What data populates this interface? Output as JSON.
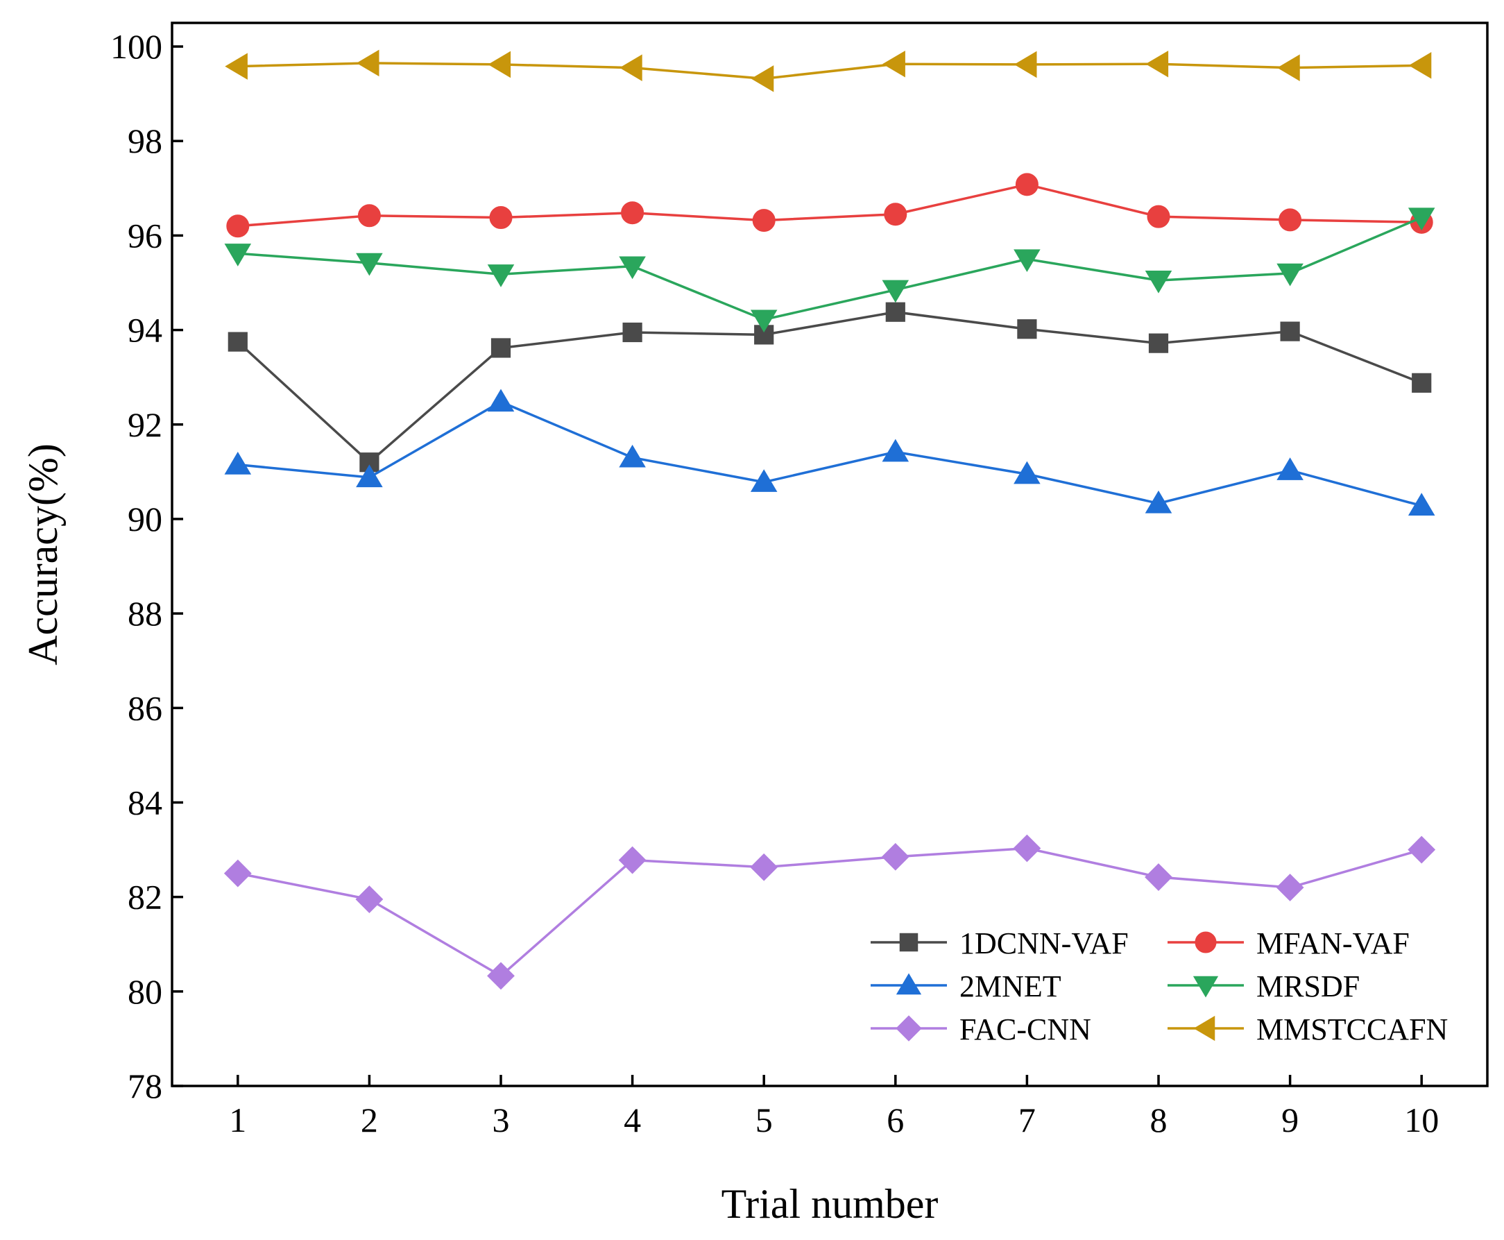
{
  "chart_data": {
    "type": "line",
    "title": "",
    "xlabel": "Trial number",
    "ylabel": "Accuracy(%)",
    "x": [
      1,
      2,
      3,
      4,
      5,
      6,
      7,
      8,
      9,
      10
    ],
    "xlim": [
      0.5,
      10.5
    ],
    "ylim": [
      78,
      100.5
    ],
    "yticks": [
      78,
      80,
      82,
      84,
      86,
      88,
      90,
      92,
      94,
      96,
      98,
      100
    ],
    "legend_position": "bottom-right",
    "series": [
      {
        "name": "1DCNN-VAF",
        "color": "#4a4a4a",
        "marker": "square",
        "values": [
          93.75,
          91.2,
          93.62,
          93.95,
          93.9,
          94.38,
          94.02,
          93.72,
          93.97,
          92.88
        ]
      },
      {
        "name": "MFAN-VAF",
        "color": "#e8403f",
        "marker": "circle",
        "values": [
          96.2,
          96.42,
          96.38,
          96.48,
          96.32,
          96.45,
          97.08,
          96.4,
          96.33,
          96.28
        ]
      },
      {
        "name": "2MNET",
        "color": "#1f6fd6",
        "marker": "triangle-up",
        "values": [
          91.15,
          90.88,
          92.48,
          91.3,
          90.78,
          91.42,
          90.95,
          90.33,
          91.03,
          90.28
        ]
      },
      {
        "name": "MRSDF",
        "color": "#2aa65c",
        "marker": "triangle-down",
        "values": [
          95.62,
          95.42,
          95.18,
          95.35,
          94.22,
          94.85,
          95.5,
          95.05,
          95.2,
          96.38
        ]
      },
      {
        "name": "FAC-CNN",
        "color": "#b07ee0",
        "marker": "diamond",
        "values": [
          82.5,
          81.95,
          80.33,
          82.78,
          82.63,
          82.85,
          83.03,
          82.42,
          82.2,
          83.0
        ]
      },
      {
        "name": "MMSTCCAFN",
        "color": "#c8960c",
        "marker": "triangle-left",
        "values": [
          99.58,
          99.65,
          99.62,
          99.55,
          99.32,
          99.63,
          99.62,
          99.63,
          99.55,
          99.6
        ]
      }
    ]
  }
}
